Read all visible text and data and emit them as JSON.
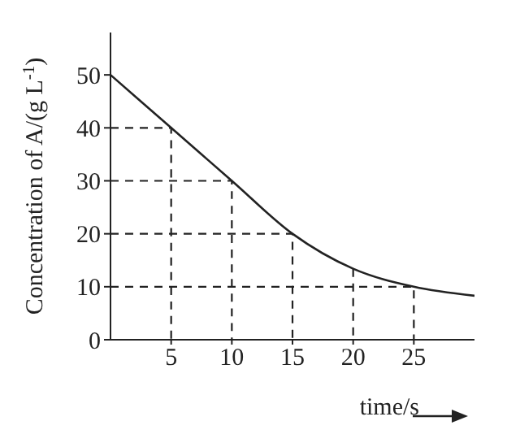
{
  "chart_data": {
    "type": "line",
    "xlabel": "time/s",
    "ylabel": "Concentration of A/(g L$^{-1}$)",
    "x": [
      0,
      5,
      10,
      15,
      20,
      25,
      30
    ],
    "series": [
      {
        "color": "#222222",
        "values": [
          50,
          40,
          30,
          20,
          13.4,
          10,
          8.3
        ]
      },
      {
        "color": "#222222",
        "line_style": "dashed",
        "x": [
          0,
          5,
          5
        ],
        "values": [
          40,
          40,
          0
        ]
      },
      {
        "color": "#222222",
        "line_style": "dashed",
        "x": [
          0,
          10,
          10
        ],
        "values": [
          30,
          30,
          0
        ]
      },
      {
        "color": "#222222",
        "line_style": "dashed",
        "x": [
          0,
          15,
          15
        ],
        "values": [
          20,
          20,
          0
        ]
      },
      {
        "color": "#222222",
        "line_style": "dashed",
        "x": [
          20,
          20
        ],
        "values": [
          13.4,
          0
        ]
      },
      {
        "color": "#222222",
        "line_style": "dashed",
        "x": [
          0,
          25,
          25
        ],
        "values": [
          10,
          10,
          0
        ]
      }
    ],
    "xlim": [
      0,
      30
    ],
    "xticks": [
      5,
      10,
      15,
      20,
      25
    ],
    "ylim": [
      0,
      58
    ],
    "yticks": [
      0,
      10,
      20,
      30,
      40,
      50
    ],
    "grid": false,
    "legend": false,
    "marker": "none",
    "line_style": "solid"
  }
}
